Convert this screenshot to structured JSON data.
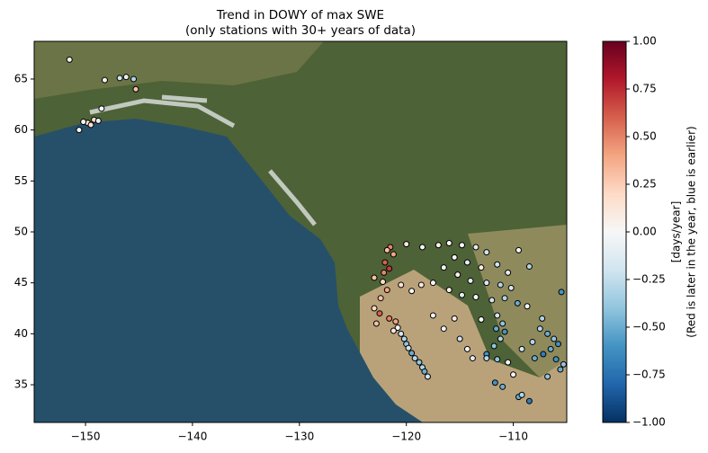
{
  "chart_data": {
    "type": "scatter",
    "title": "Trend in DOWY of max SWE",
    "subtitle": "(only stations with 30+ years of data)",
    "colorbar_label": [
      "[days/year]",
      "(Red is later in the year, blue is earlier)"
    ],
    "xlim": [
      -154.8,
      -105
    ],
    "ylim": [
      31.3,
      68.7
    ],
    "xticks": [
      {
        "value": -150,
        "label": "−150"
      },
      {
        "value": -140,
        "label": "−140"
      },
      {
        "value": -130,
        "label": "−130"
      },
      {
        "value": -120,
        "label": "−120"
      },
      {
        "value": -110,
        "label": "−110"
      }
    ],
    "yticks": [
      35,
      40,
      45,
      50,
      55,
      60,
      65
    ],
    "clim": [
      -1,
      1
    ],
    "cticks": [
      {
        "value": 1,
        "label": "1.00"
      },
      {
        "value": 0.75,
        "label": "0.75"
      },
      {
        "value": 0.5,
        "label": "0.50"
      },
      {
        "value": 0.25,
        "label": "0.25"
      },
      {
        "value": 0,
        "label": "0.00"
      },
      {
        "value": -0.25,
        "label": "−0.25"
      },
      {
        "value": -0.5,
        "label": "−0.50"
      },
      {
        "value": -0.75,
        "label": "−0.75"
      },
      {
        "value": -1,
        "label": "−1.00"
      }
    ],
    "colorscale": [
      "#053061",
      "#2166ac",
      "#4393c3",
      "#92c5de",
      "#d1e5f0",
      "#f7f7f7",
      "#fddbc7",
      "#f4a582",
      "#d6604d",
      "#b2182b",
      "#67001f"
    ],
    "x": [
      -151.5,
      -148.2,
      -146.8,
      -146.2,
      -145.5,
      -145.3,
      -148.5,
      -149.8,
      -149.2,
      -148.8,
      -149.5,
      -150.6,
      -150.2,
      -121.5,
      -121.8,
      -121.2,
      -122.0,
      -121.6,
      -122.1,
      -123.0,
      -122.2,
      -121.8,
      -122.4,
      -123.0,
      -122.5,
      -121.6,
      -121.0,
      -122.8,
      -120.5,
      -120.2,
      -120.0,
      -119.8,
      -119.5,
      -119.2,
      -118.8,
      -118.5,
      -118.3,
      -118.0,
      -120.8,
      -121.2,
      -120.0,
      -118.5,
      -117.0,
      -116.0,
      -114.8,
      -113.5,
      -112.5,
      -115.5,
      -114.3,
      -113.0,
      -111.5,
      -110.5,
      -116.5,
      -115.2,
      -114.0,
      -112.5,
      -111.2,
      -110.2,
      -117.5,
      -118.6,
      -119.5,
      -120.5,
      -116.0,
      -114.8,
      -113.5,
      -112.0,
      -110.8,
      -109.6,
      -108.7,
      -107.3,
      -105.5,
      -109.5,
      -108.5,
      -111.5,
      -111.0,
      -111.6,
      -110.8,
      -111.2,
      -111.8,
      -112.5,
      -111.5,
      -110.5,
      -107.5,
      -106.8,
      -106.2,
      -105.8,
      -106.5,
      -107.2,
      -106.0,
      -105.3,
      -105.6,
      -108.0,
      -109.2,
      -108.2,
      -115.5,
      -116.5,
      -115.0,
      -114.3,
      -117.5,
      -113.8,
      -112.5,
      -111.7,
      -111.0,
      -109.5,
      -108.5,
      -109.2,
      -110.0,
      -106.8,
      -113.0
    ],
    "y": [
      66.9,
      64.9,
      65.1,
      65.2,
      65.0,
      64.0,
      62.1,
      60.7,
      61.0,
      60.9,
      60.5,
      60.0,
      60.8,
      48.5,
      48.2,
      47.8,
      47.0,
      46.4,
      46.0,
      45.5,
      45.1,
      44.3,
      43.5,
      42.5,
      42.0,
      41.5,
      41.2,
      41.0,
      40.0,
      39.5,
      39.0,
      38.6,
      38.1,
      37.6,
      37.2,
      36.7,
      36.3,
      35.8,
      40.6,
      40.3,
      48.8,
      48.5,
      48.7,
      48.9,
      48.7,
      48.5,
      48.0,
      47.5,
      47.0,
      46.5,
      46.8,
      46.0,
      46.5,
      45.8,
      45.2,
      45.0,
      44.8,
      44.5,
      45.0,
      44.8,
      44.2,
      44.8,
      44.3,
      43.8,
      43.6,
      43.3,
      43.5,
      43.0,
      42.7,
      41.5,
      44.1,
      48.2,
      46.6,
      41.8,
      41.0,
      40.5,
      40.2,
      39.5,
      38.8,
      38.0,
      37.5,
      37.2,
      40.5,
      40.0,
      39.5,
      39.0,
      38.5,
      38.0,
      37.5,
      37.0,
      36.5,
      37.6,
      38.5,
      39.2,
      41.5,
      40.5,
      39.5,
      38.5,
      41.8,
      37.6,
      37.6,
      35.2,
      34.8,
      33.8,
      33.4,
      34.0,
      36.0,
      35.8,
      41.4
    ],
    "values": [
      0,
      0.05,
      -0.2,
      -0.1,
      -0.3,
      0.3,
      0,
      0.1,
      0.2,
      -0.1,
      0.15,
      0,
      0,
      0.5,
      0.3,
      0.4,
      0.6,
      0.7,
      0.5,
      0.3,
      0.2,
      0.4,
      0.3,
      0.2,
      0.6,
      0.5,
      0.4,
      0.3,
      -0.2,
      -0.3,
      -0.4,
      -0.2,
      -0.5,
      -0.3,
      -0.4,
      -0.3,
      -0.5,
      -0.2,
      0,
      0.1,
      0.1,
      0,
      0.05,
      0,
      0,
      -0.1,
      -0.2,
      0,
      -0.1,
      0.1,
      -0.2,
      -0.1,
      0,
      0.05,
      -0.1,
      -0.15,
      -0.3,
      -0.2,
      0,
      0.1,
      0,
      0.15,
      0.05,
      -0.1,
      0,
      -0.2,
      -0.3,
      -0.5,
      0,
      -0.3,
      -0.6,
      0,
      -0.3,
      -0.2,
      -0.4,
      -0.5,
      -0.6,
      -0.3,
      -0.4,
      -0.6,
      -0.4,
      0,
      -0.3,
      -0.5,
      -0.4,
      -0.6,
      -0.5,
      -0.7,
      -0.6,
      -0.4,
      -0.5,
      -0.5,
      -0.2,
      -0.3,
      0.05,
      0,
      -0.2,
      0,
      0,
      -0.1,
      -0.3,
      -0.6,
      -0.5,
      -0.5,
      -0.7,
      -0.3,
      0,
      -0.4,
      0
    ]
  }
}
